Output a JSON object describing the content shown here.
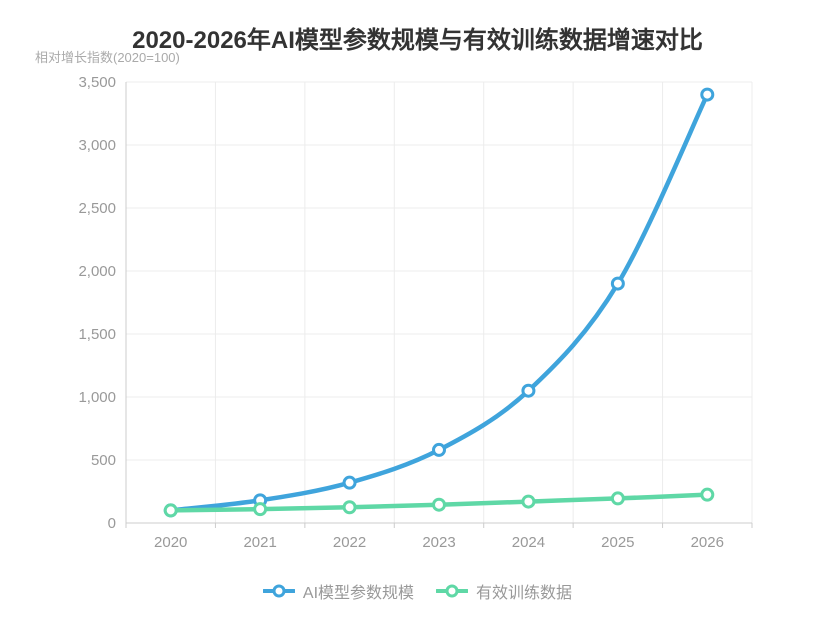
{
  "chart_data": {
    "type": "line",
    "title": "2020-2026年AI模型参数规模与有效训练数据增速对比",
    "y_axis_name": "相对增长指数(2020=100)",
    "categories": [
      "2020",
      "2021",
      "2022",
      "2023",
      "2024",
      "2025",
      "2026"
    ],
    "series": [
      {
        "name": "AI模型参数规模",
        "color": "#3fa4dc",
        "values": [
          100,
          180,
          320,
          580,
          1050,
          1900,
          3400
        ]
      },
      {
        "name": "有效训练数据",
        "color": "#5fd8a6",
        "values": [
          100,
          110,
          125,
          145,
          170,
          195,
          225
        ]
      }
    ],
    "ylim": [
      0,
      3500
    ],
    "y_tick_step": 500,
    "y_tick_labels": [
      "0",
      "500",
      "1,000",
      "1,500",
      "2,000",
      "2,500",
      "3,000",
      "3,500"
    ],
    "grid": "on",
    "smooth": true,
    "legend_position": "bottom",
    "style": {
      "grid_line_color": "#ececec",
      "axis_line_color": "#cccccc",
      "tick_label_color": "#999999",
      "title_color": "#333333",
      "axis_name_color": "#aaaaaa",
      "legend_text_color": "#999999",
      "background": "#ffffff"
    }
  }
}
